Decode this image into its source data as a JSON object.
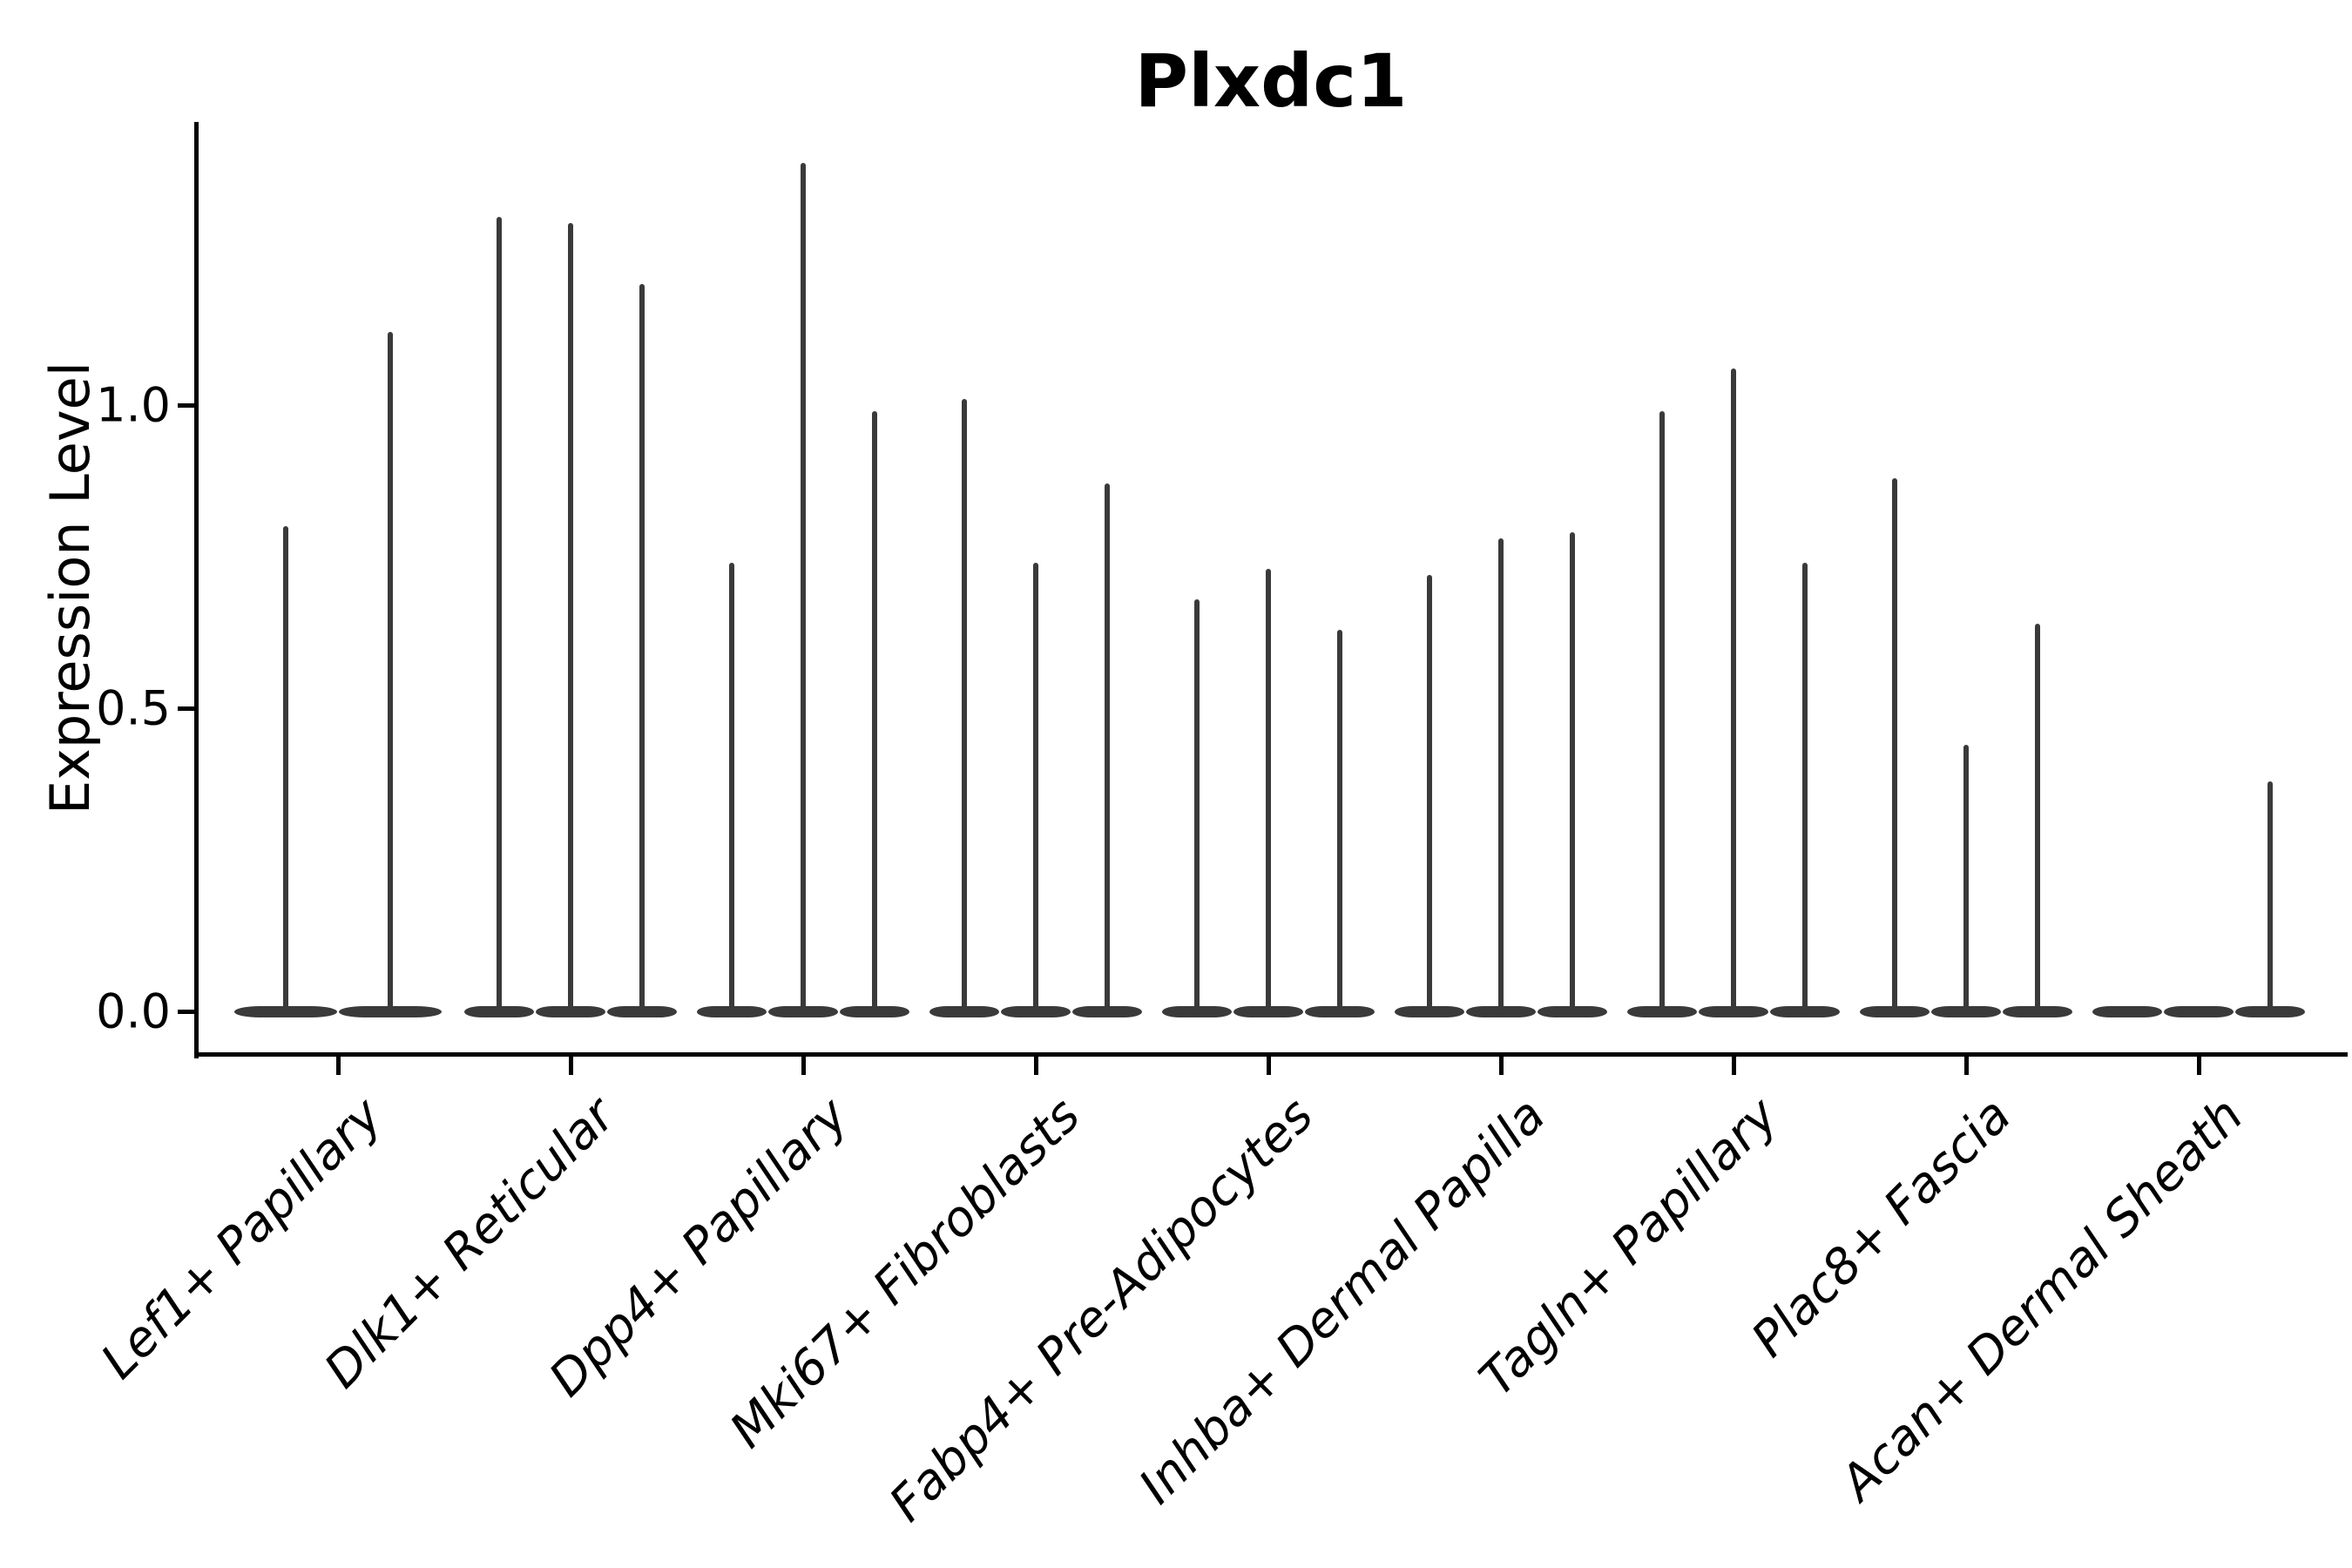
{
  "figure": {
    "background": "#ffffff",
    "ink_color": "#000000",
    "violin_color": "#3a3a3a"
  },
  "chart_data": {
    "type": "violin",
    "title": "Plxdc1",
    "ylabel": "Expression Level",
    "xlabel": "",
    "yticks": [
      0.0,
      0.5,
      1.0
    ],
    "ytick_labels": [
      "0.0",
      "0.5",
      "1.0"
    ],
    "ylim": [
      -0.07,
      1.47
    ],
    "grid": false,
    "legend": "none",
    "style_notes": "Seurat-style single-gene violin plot; every violin is a wide flat density bulge at expression 0 with a needle-thin spike up to the cluster maximum; x tick labels italic, rotated 45 deg, right-anchored; only left and bottom spines",
    "categories": [
      {
        "label": "Lef1+ Papillary",
        "violin_maxima": [
          0.8,
          1.12
        ]
      },
      {
        "label": "Dlk1+ Reticular",
        "violin_maxima": [
          1.31,
          1.3,
          1.2
        ]
      },
      {
        "label": "Dpp4+ Papillary",
        "violin_maxima": [
          0.74,
          1.4,
          0.99
        ]
      },
      {
        "label": "Mki67+ Fibroblasts",
        "violin_maxima": [
          1.01,
          0.74,
          0.87
        ]
      },
      {
        "label": "Fabp4+ Pre-Adipocytes",
        "violin_maxima": [
          0.68,
          0.73,
          0.63
        ]
      },
      {
        "label": "Inhba+ Dermal Papilla",
        "violin_maxima": [
          0.72,
          0.78,
          0.79
        ]
      },
      {
        "label": "Tagln+ Papillary",
        "violin_maxima": [
          0.99,
          1.06,
          0.74
        ]
      },
      {
        "label": "Plac8+ Fascia",
        "violin_maxima": [
          0.88,
          0.44,
          0.64
        ]
      },
      {
        "label": "Acan+ Dermal Sheath",
        "violin_maxima": [
          0.0,
          0.0,
          0.38
        ]
      }
    ]
  }
}
